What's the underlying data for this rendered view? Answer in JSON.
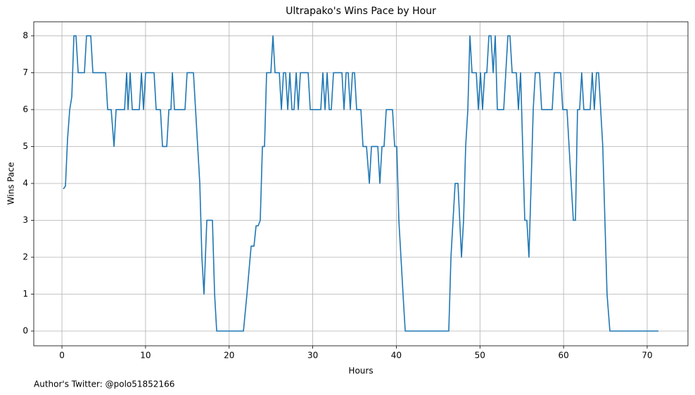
{
  "chart_data": {
    "type": "line",
    "title": "Ultrapako's Wins Pace by Hour",
    "x_label": "Hours",
    "y_label": "Wins Pace",
    "footnote": "Author's Twitter: @polo51852166",
    "grid": true,
    "xlim": [
      -3.37,
      74.88
    ],
    "ylim": [
      -0.4,
      8.38
    ],
    "xticks": [
      0,
      10,
      20,
      30,
      40,
      50,
      60,
      70
    ],
    "yticks": [
      0,
      1,
      2,
      3,
      4,
      5,
      6,
      7,
      8
    ],
    "x": [
      0.17,
      0.42,
      0.67,
      0.93,
      1.18,
      1.43,
      1.68,
      1.94,
      2.69,
      2.94,
      3.45,
      3.7,
      5.22,
      5.47,
      5.89,
      6.23,
      6.48,
      7.49,
      7.74,
      7.91,
      8.16,
      8.41,
      9.25,
      9.51,
      9.76,
      10.01,
      11.02,
      11.27,
      11.78,
      12.03,
      12.54,
      12.79,
      13.04,
      13.21,
      13.46,
      14.72,
      14.97,
      15.73,
      16.49,
      16.74,
      16.99,
      17.33,
      18.0,
      18.26,
      18.51,
      21.71,
      22.13,
      22.63,
      22.97,
      23.22,
      23.47,
      23.72,
      23.98,
      24.23,
      24.48,
      24.99,
      25.24,
      25.49,
      26.0,
      26.25,
      26.5,
      26.75,
      27.01,
      27.26,
      27.51,
      27.76,
      28.02,
      28.27,
      28.52,
      29.45,
      29.7,
      30.96,
      31.21,
      31.47,
      31.72,
      31.97,
      32.22,
      32.48,
      33.49,
      33.74,
      33.99,
      34.24,
      34.49,
      34.75,
      35.0,
      35.25,
      35.76,
      36.01,
      36.43,
      36.77,
      37.02,
      37.78,
      38.03,
      38.28,
      38.53,
      38.79,
      39.54,
      39.8,
      40.05,
      40.3,
      40.8,
      41.06,
      46.27,
      46.53,
      47.03,
      47.37,
      47.79,
      48.04,
      48.29,
      48.55,
      48.8,
      49.05,
      49.56,
      49.81,
      50.06,
      50.31,
      50.57,
      50.82,
      51.07,
      51.32,
      51.58,
      51.83,
      52.08,
      52.84,
      53.09,
      53.34,
      53.59,
      53.85,
      54.35,
      54.6,
      54.86,
      55.36,
      55.61,
      55.86,
      56.12,
      56.37,
      56.62,
      57.13,
      57.38,
      58.64,
      58.89,
      59.65,
      59.9,
      60.41,
      60.91,
      61.17,
      61.42,
      61.67,
      61.92,
      62.17,
      62.42,
      63.18,
      63.43,
      63.68,
      63.94,
      64.19,
      64.69,
      65.2,
      65.54,
      71.34
    ],
    "series": [
      {
        "name": "Wins Pace",
        "color": "#1f77b4",
        "values": [
          3.85,
          3.93,
          5.2,
          6.0,
          6.35,
          8,
          8,
          7,
          7,
          8,
          8,
          7,
          7,
          6,
          6,
          5,
          6,
          6,
          7,
          6,
          7,
          6,
          6,
          7,
          6,
          7,
          7,
          6,
          6,
          5,
          5,
          6,
          6,
          7,
          6,
          6,
          7,
          7,
          4,
          2,
          1,
          3,
          3,
          1,
          0,
          0,
          1,
          2.3,
          2.3,
          2.85,
          2.85,
          3,
          5,
          5,
          7,
          7,
          8,
          7,
          7,
          6,
          7,
          7,
          6,
          7,
          6,
          6,
          7,
          6,
          7,
          7,
          6,
          6,
          7,
          6,
          7,
          6,
          6,
          7,
          7,
          6,
          7,
          7,
          6,
          7,
          7,
          6,
          6,
          5,
          5,
          4,
          5,
          5,
          4,
          5,
          5,
          6,
          6,
          5,
          5,
          3,
          1,
          0,
          0,
          2,
          4,
          4,
          2,
          3,
          5,
          6,
          8,
          7,
          7,
          6,
          7,
          6,
          7,
          7,
          8,
          8,
          7,
          8,
          6,
          6,
          7,
          8,
          8,
          7,
          7,
          6,
          7,
          3,
          3,
          2,
          4,
          6,
          7,
          7,
          6,
          6,
          7,
          7,
          6,
          6,
          4,
          3,
          3,
          6,
          6,
          7,
          6,
          6,
          7,
          6,
          7,
          7,
          5,
          1,
          0,
          0
        ]
      }
    ]
  }
}
